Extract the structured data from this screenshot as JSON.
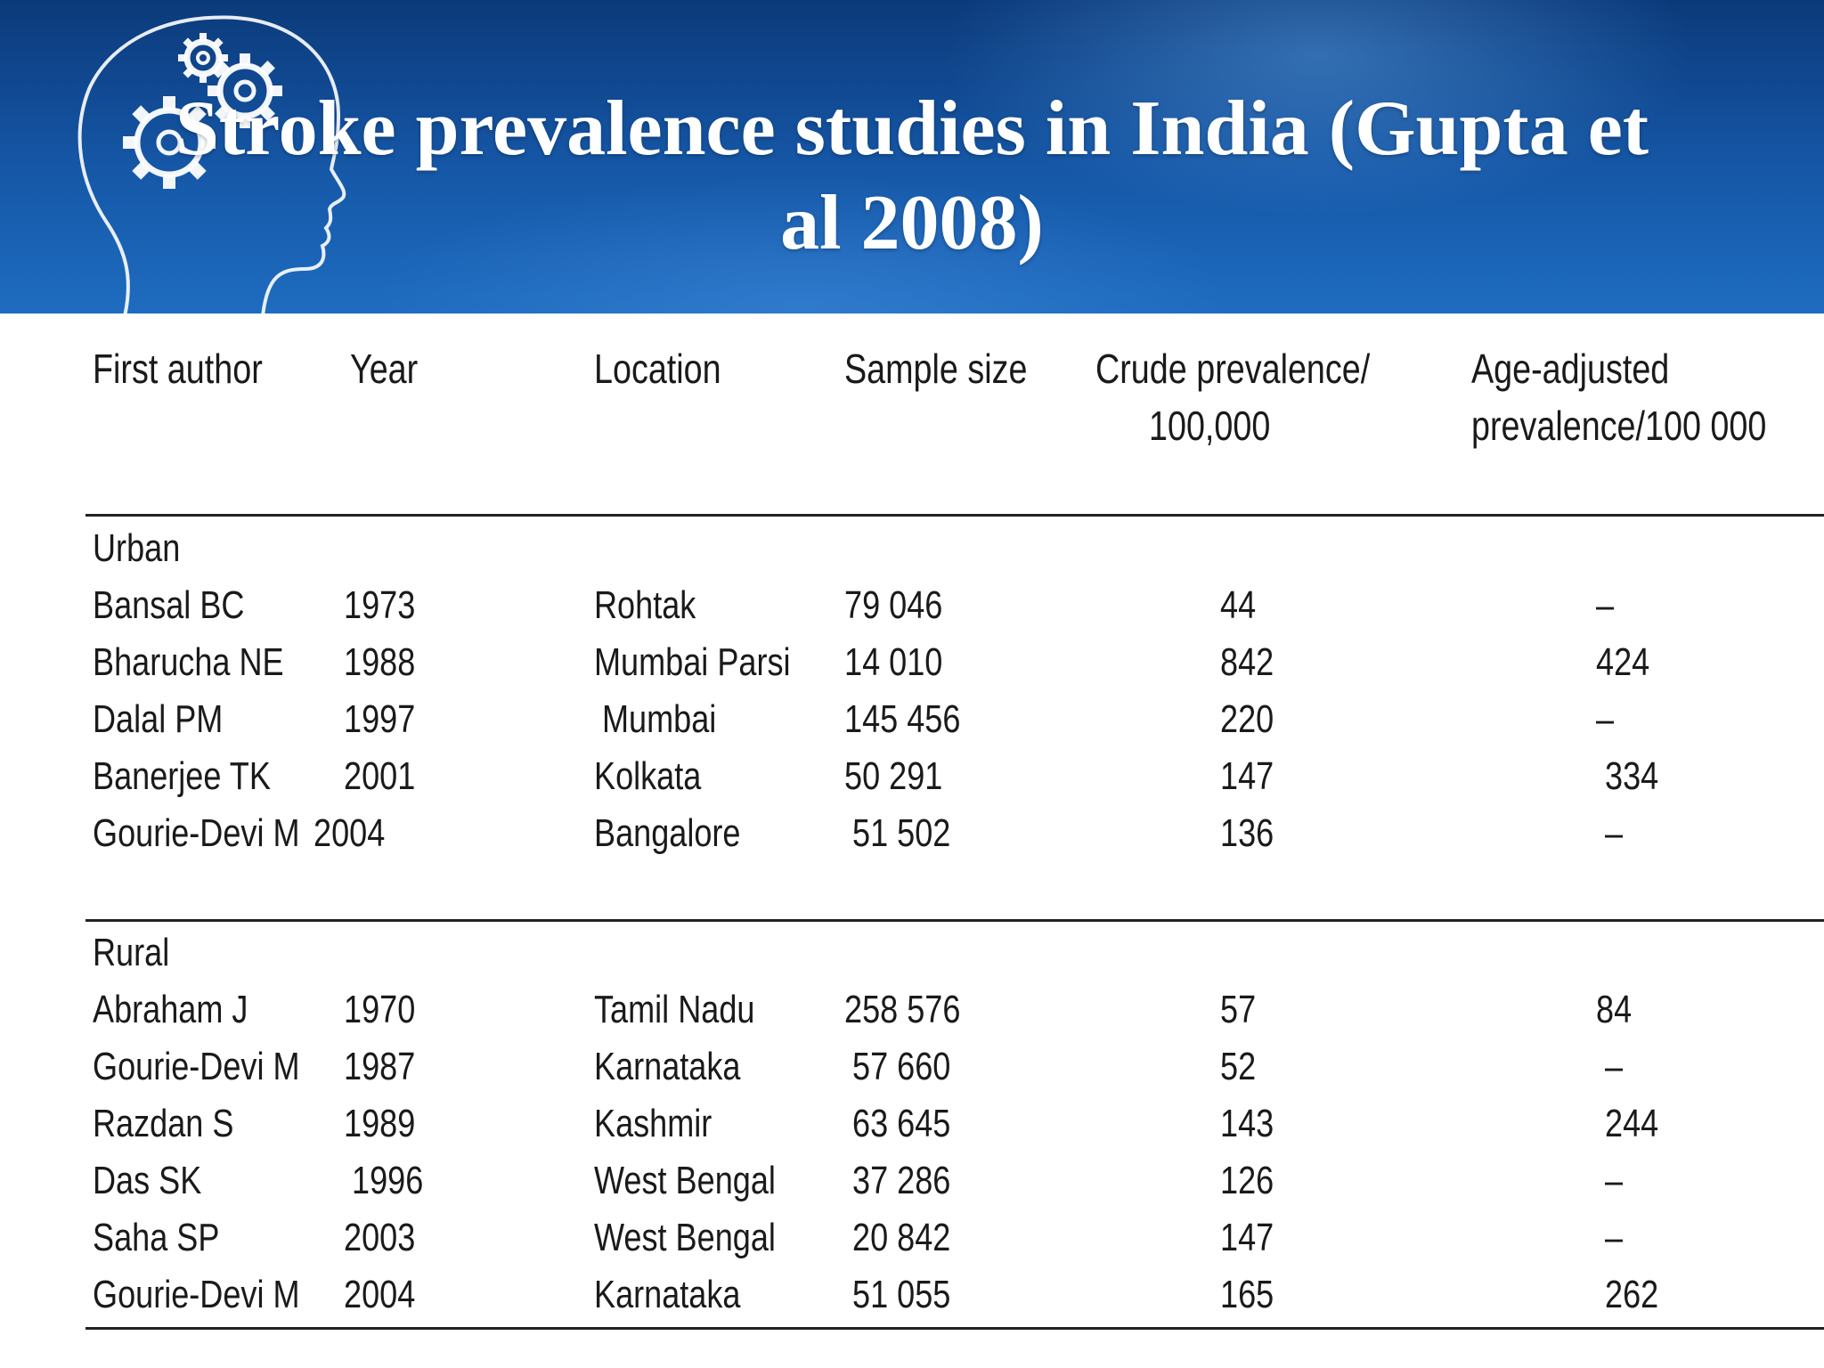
{
  "slide": {
    "title_line1": "Stroke prevalence studies in India (Gupta et",
    "title_line2": "al 2008)"
  },
  "table": {
    "headers": {
      "author": "First author",
      "year": "Year",
      "location": "Location",
      "sample": "Sample size",
      "crude_l1": "Crude prevalence/",
      "crude_l2": "100,000",
      "age_l1": "Age-adjusted",
      "age_l2": "prevalence/100 000"
    },
    "urban": {
      "label": "Urban",
      "rows": [
        {
          "author": "Bansal BC",
          "year": "1973",
          "location": "Rohtak",
          "sample": "79 046",
          "crude": "44",
          "age": "–"
        },
        {
          "author": "Bharucha NE",
          "year": "1988",
          "location": "Mumbai Parsi",
          "sample": "14 010",
          "crude": "842",
          "age": "424"
        },
        {
          "author": "Dalal PM",
          "year": "1997",
          "location": "Mumbai",
          "sample": "145 456",
          "crude": "220",
          "age": "–"
        },
        {
          "author": "Banerjee TK",
          "year": "2001",
          "location": "Kolkata",
          "sample": "50 291",
          "crude": "147",
          "age": "334"
        },
        {
          "author": "Gourie-Devi M",
          "year": "2004",
          "location": "Bangalore",
          "sample": "51 502",
          "crude": "136",
          "age": "–"
        }
      ]
    },
    "rural": {
      "label": "Rural",
      "rows": [
        {
          "author": "Abraham J",
          "year": "1970",
          "location": "Tamil Nadu",
          "sample": "258 576",
          "crude": "57",
          "age": "84"
        },
        {
          "author": "Gourie-Devi M",
          "year": "1987",
          "location": "Karnataka",
          "sample": "57 660",
          "crude": "52",
          "age": "–"
        },
        {
          "author": "Razdan S",
          "year": "1989",
          "location": "Kashmir",
          "sample": "63 645",
          "crude": "143",
          "age": "244"
        },
        {
          "author": "Das SK",
          "year": "1996",
          "location": "West Bengal",
          "sample": "37 286",
          "crude": "126",
          "age": "–"
        },
        {
          "author": "Saha SP",
          "year": "2003",
          "location": "West Bengal",
          "sample": "20 842",
          "crude": "147",
          "age": "–"
        },
        {
          "author": "Gourie-Devi M",
          "year": "2004",
          "location": "Karnataka",
          "sample": "51 055",
          "crude": "165",
          "age": "262"
        }
      ]
    }
  }
}
